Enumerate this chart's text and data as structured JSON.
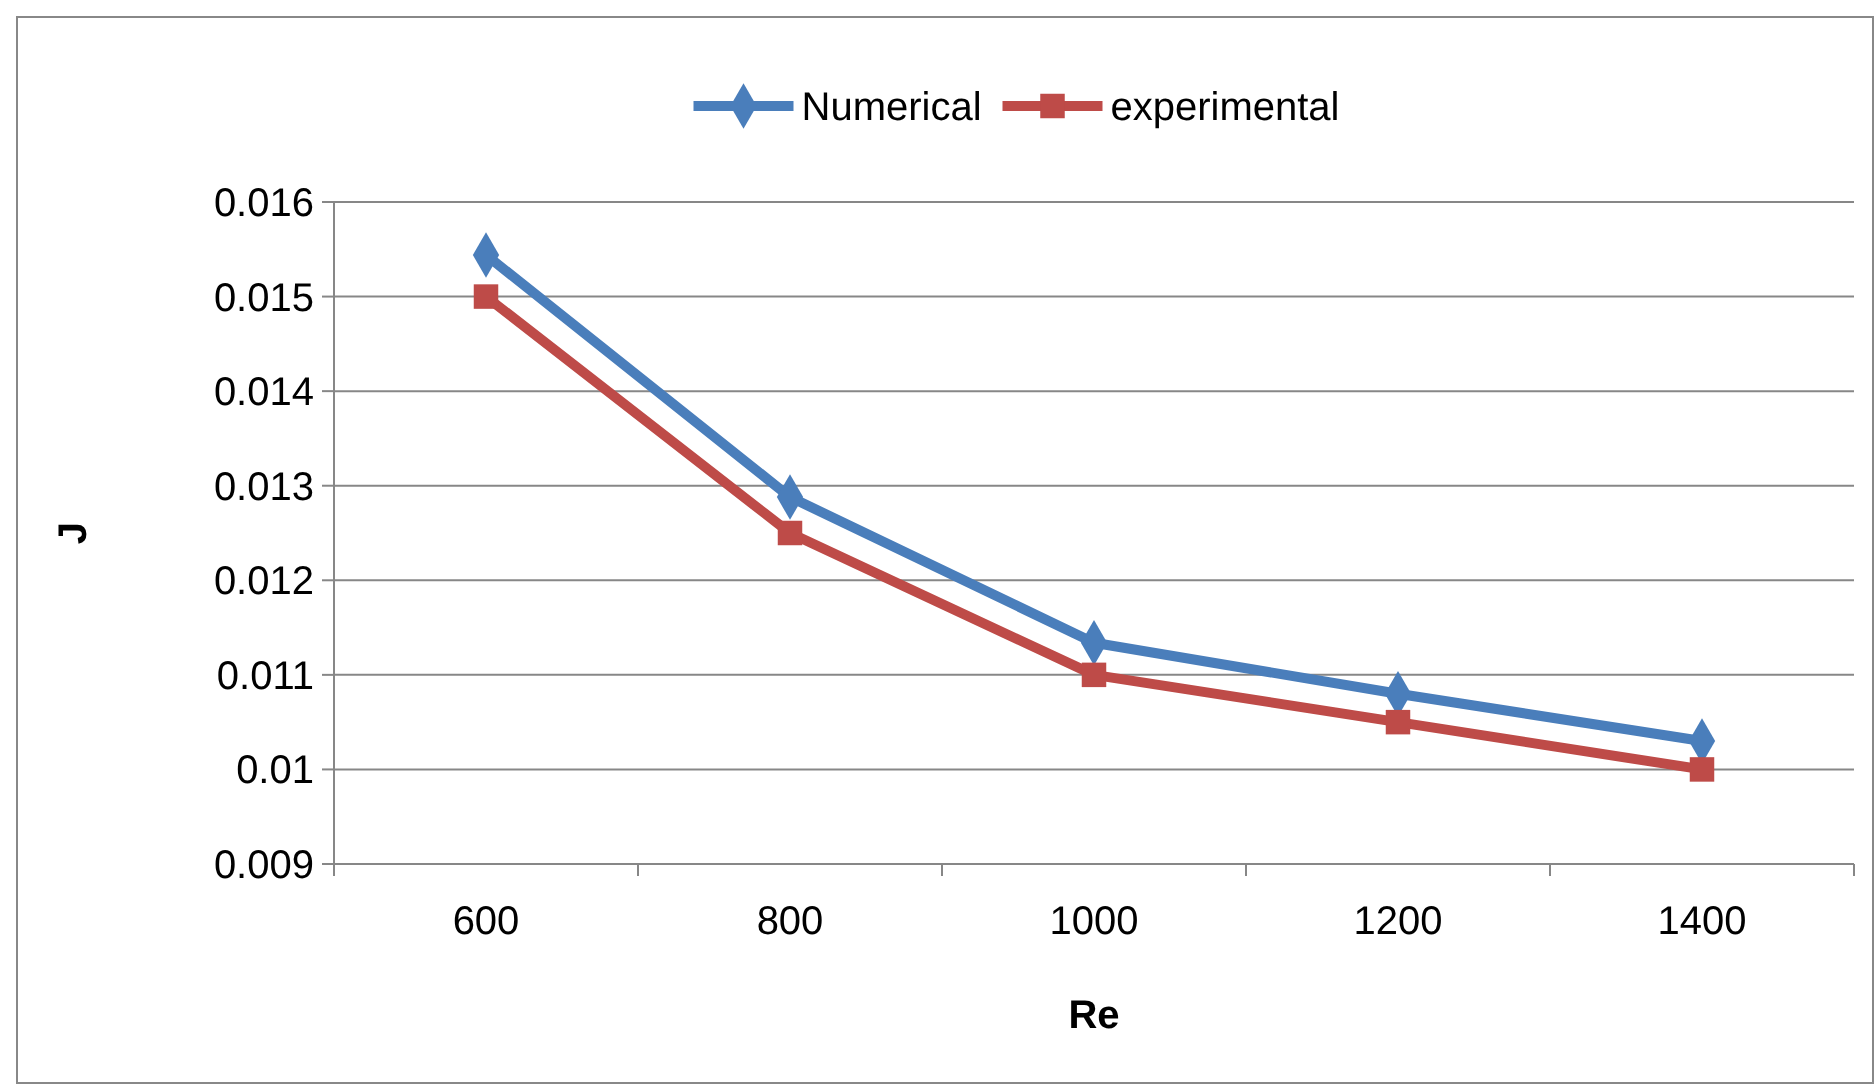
{
  "chart_data": {
    "type": "line",
    "xlabel": "Re",
    "ylabel": "J",
    "categories": [
      "600",
      "800",
      "1000",
      "1200",
      "1400"
    ],
    "series": [
      {
        "name": "Numerical",
        "color": "#4a7ebb",
        "marker": "diamond",
        "values": [
          0.01544,
          0.01288,
          0.01134,
          0.0108,
          0.0103
        ]
      },
      {
        "name": "experimental",
        "color": "#be4b48",
        "marker": "square",
        "values": [
          0.015,
          0.0125,
          0.011,
          0.0105,
          0.01
        ]
      }
    ],
    "ylim": [
      0.009,
      0.016
    ],
    "yticks": [
      0.009,
      0.01,
      0.011,
      0.012,
      0.013,
      0.014,
      0.015,
      0.016
    ],
    "grid": "y",
    "legend": "top",
    "line_style": "solid"
  }
}
